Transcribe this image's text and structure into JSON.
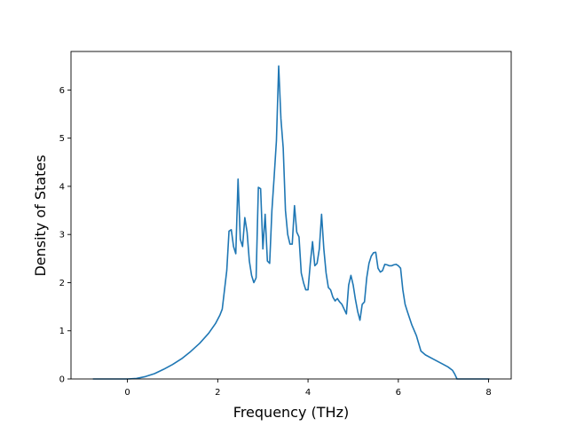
{
  "chart_data": {
    "type": "line",
    "title": "",
    "xlabel": "Frequency (THz)",
    "ylabel": "Density of States",
    "xlim": [
      -1.25,
      8.5
    ],
    "ylim": [
      0,
      6.8
    ],
    "xticks": [
      0,
      2,
      4,
      6,
      8
    ],
    "yticks": [
      0,
      1,
      2,
      3,
      4,
      5,
      6
    ],
    "grid": false,
    "color": "#1f77b4",
    "series": [
      {
        "x": [
          -0.75,
          0,
          0.2,
          0.4,
          0.6,
          0.8,
          1.0,
          1.2,
          1.4,
          1.6,
          1.8,
          1.95,
          2.05,
          2.1,
          2.15,
          2.2,
          2.25,
          2.3,
          2.35,
          2.4,
          2.45,
          2.5,
          2.55,
          2.6,
          2.65,
          2.7,
          2.75,
          2.8,
          2.85,
          2.9,
          2.95,
          3.0,
          3.05,
          3.1,
          3.15,
          3.2,
          3.25,
          3.3,
          3.35,
          3.4,
          3.45,
          3.5,
          3.55,
          3.6,
          3.65,
          3.7,
          3.75,
          3.8,
          3.85,
          3.9,
          3.95,
          4.0,
          4.05,
          4.1,
          4.15,
          4.2,
          4.25,
          4.3,
          4.35,
          4.4,
          4.45,
          4.5,
          4.55,
          4.6,
          4.65,
          4.7,
          4.75,
          4.8,
          4.85,
          4.9,
          4.95,
          5.0,
          5.05,
          5.1,
          5.15,
          5.2,
          5.25,
          5.3,
          5.35,
          5.4,
          5.45,
          5.5,
          5.55,
          5.6,
          5.65,
          5.7,
          5.75,
          5.8,
          5.85,
          5.9,
          5.95,
          6.0,
          6.05,
          6.1,
          6.15,
          6.2,
          6.3,
          6.4,
          6.5,
          6.6,
          6.8,
          7.0,
          7.1,
          7.2,
          7.25,
          7.3,
          7.5,
          8.0
        ],
        "y": [
          0,
          0,
          0.01,
          0.05,
          0.11,
          0.2,
          0.3,
          0.42,
          0.57,
          0.74,
          0.95,
          1.15,
          1.33,
          1.45,
          1.85,
          2.25,
          3.07,
          3.1,
          2.75,
          2.6,
          4.15,
          2.9,
          2.75,
          3.35,
          3.05,
          2.45,
          2.15,
          2.0,
          2.1,
          3.98,
          3.95,
          2.7,
          3.42,
          2.45,
          2.4,
          3.5,
          4.2,
          4.95,
          6.5,
          5.4,
          4.8,
          3.5,
          3.0,
          2.8,
          2.8,
          3.6,
          3.05,
          2.95,
          2.2,
          2.0,
          1.85,
          1.85,
          2.4,
          2.85,
          2.35,
          2.4,
          2.7,
          3.42,
          2.7,
          2.2,
          1.9,
          1.85,
          1.7,
          1.62,
          1.67,
          1.6,
          1.55,
          1.45,
          1.35,
          1.95,
          2.15,
          1.95,
          1.65,
          1.4,
          1.22,
          1.55,
          1.6,
          2.1,
          2.4,
          2.55,
          2.62,
          2.63,
          2.3,
          2.22,
          2.25,
          2.38,
          2.37,
          2.35,
          2.35,
          2.37,
          2.38,
          2.35,
          2.3,
          1.85,
          1.55,
          1.4,
          1.12,
          0.9,
          0.58,
          0.5,
          0.4,
          0.3,
          0.25,
          0.18,
          0.1,
          0,
          0,
          0
        ]
      }
    ]
  }
}
